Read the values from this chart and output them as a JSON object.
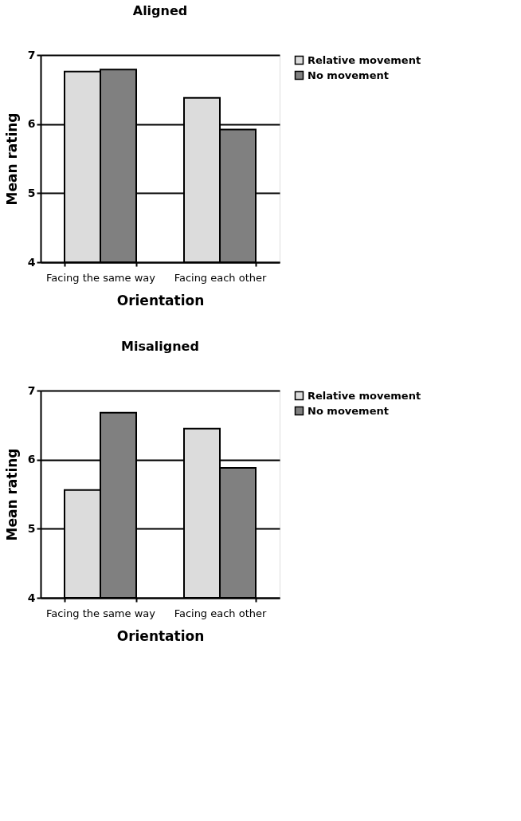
{
  "chart_data": [
    {
      "type": "bar",
      "title": "Aligned",
      "xlabel": "Orientation",
      "ylabel": "Mean rating",
      "categories": [
        "Facing the same way",
        "Facing each other"
      ],
      "series": [
        {
          "name": "Relative movement",
          "color": "#dcdcdc",
          "values": [
            6.76,
            6.38
          ]
        },
        {
          "name": "No movement",
          "color": "#808080",
          "values": [
            6.79,
            5.92
          ]
        }
      ],
      "ylim": [
        4,
        7
      ],
      "yticks": [
        4,
        5,
        6,
        7
      ],
      "grid": "y",
      "legend": "right"
    },
    {
      "type": "bar",
      "title": "Misaligned",
      "xlabel": "Orientation",
      "ylabel": "Mean rating",
      "categories": [
        "Facing the same way",
        "Facing each other"
      ],
      "series": [
        {
          "name": "Relative movement",
          "color": "#dcdcdc",
          "values": [
            5.56,
            6.45
          ]
        },
        {
          "name": "No movement",
          "color": "#808080",
          "values": [
            6.68,
            5.88
          ]
        }
      ],
      "ylim": [
        4,
        7
      ],
      "yticks": [
        4,
        5,
        6,
        7
      ],
      "grid": "y",
      "legend": "right"
    }
  ]
}
